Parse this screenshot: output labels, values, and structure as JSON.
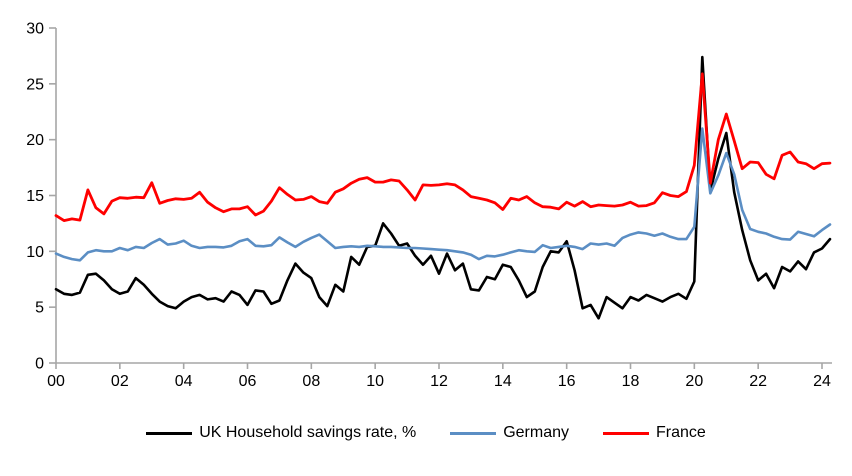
{
  "chart_data": {
    "type": "line",
    "title": "",
    "xlabel": "",
    "ylabel": "",
    "x_start_year": 2000,
    "x_step_years": 0.25,
    "x_axis": {
      "tick_interval_years": 2,
      "tick_labels": [
        "00",
        "02",
        "04",
        "06",
        "08",
        "10",
        "12",
        "14",
        "16",
        "18",
        "20",
        "22",
        "24"
      ]
    },
    "y_axis": {
      "min": 0,
      "max": 30,
      "tick_step": 5,
      "tick_labels": [
        "0",
        "5",
        "10",
        "15",
        "20",
        "25",
        "30"
      ]
    },
    "grid": false,
    "legend_position": "bottom-center",
    "axis_color": "#A6A6A6",
    "label_color": "#000000",
    "series": [
      {
        "name": "UK Household savings rate, %",
        "color": "#000000",
        "line_width": 2.6,
        "values": [
          6.6,
          6.2,
          6.1,
          6.3,
          7.9,
          8.0,
          7.4,
          6.6,
          6.2,
          6.4,
          7.6,
          7.0,
          6.2,
          5.5,
          5.1,
          4.9,
          5.5,
          5.9,
          6.1,
          5.7,
          5.8,
          5.5,
          6.4,
          6.1,
          5.2,
          6.5,
          6.4,
          5.3,
          5.6,
          7.4,
          8.9,
          8.1,
          7.6,
          5.9,
          5.1,
          7.0,
          6.4,
          9.5,
          8.8,
          10.4,
          10.5,
          12.5,
          11.6,
          10.5,
          10.7,
          9.6,
          8.8,
          9.6,
          8.0,
          9.8,
          8.3,
          8.9,
          6.6,
          6.5,
          7.7,
          7.5,
          8.8,
          8.6,
          7.4,
          5.9,
          6.4,
          8.6,
          10.0,
          9.9,
          10.9,
          8.3,
          4.9,
          5.2,
          4.0,
          5.9,
          5.4,
          4.9,
          5.9,
          5.6,
          6.1,
          5.8,
          5.5,
          5.9,
          6.2,
          5.75,
          7.3,
          27.4,
          15.4,
          18.3,
          20.6,
          15.3,
          11.9,
          9.2,
          7.4,
          8.0,
          6.7,
          8.6,
          8.2,
          9.1,
          8.4,
          9.9,
          10.25,
          11.1
        ]
      },
      {
        "name": "Germany",
        "color": "#5B8EC4",
        "line_width": 2.6,
        "values": [
          9.8,
          9.5,
          9.3,
          9.2,
          9.9,
          10.1,
          10.0,
          10.0,
          10.3,
          10.1,
          10.4,
          10.3,
          10.75,
          11.1,
          10.6,
          10.7,
          10.95,
          10.5,
          10.3,
          10.4,
          10.4,
          10.35,
          10.5,
          10.9,
          11.1,
          10.5,
          10.45,
          10.55,
          11.25,
          10.8,
          10.4,
          10.85,
          11.2,
          11.5,
          10.9,
          10.3,
          10.4,
          10.45,
          10.4,
          10.5,
          10.45,
          10.4,
          10.4,
          10.35,
          10.3,
          10.3,
          10.25,
          10.2,
          10.15,
          10.1,
          10.0,
          9.9,
          9.7,
          9.3,
          9.6,
          9.55,
          9.7,
          9.9,
          10.1,
          10.0,
          9.95,
          10.55,
          10.3,
          10.4,
          10.5,
          10.4,
          10.2,
          10.7,
          10.6,
          10.7,
          10.5,
          11.2,
          11.5,
          11.7,
          11.6,
          11.4,
          11.6,
          11.3,
          11.1,
          11.1,
          12.2,
          21.0,
          15.2,
          16.8,
          18.8,
          16.9,
          13.7,
          12.0,
          11.75,
          11.6,
          11.3,
          11.1,
          11.05,
          11.75,
          11.55,
          11.35,
          11.9,
          12.4
        ]
      },
      {
        "name": "France",
        "color": "#FF0000",
        "line_width": 2.8,
        "values": [
          13.2,
          12.75,
          12.9,
          12.8,
          15.5,
          13.9,
          13.35,
          14.5,
          14.8,
          14.75,
          14.85,
          14.8,
          16.15,
          14.3,
          14.55,
          14.7,
          14.65,
          14.75,
          15.3,
          14.4,
          13.9,
          13.55,
          13.8,
          13.8,
          14.0,
          13.25,
          13.6,
          14.5,
          15.7,
          15.1,
          14.6,
          14.65,
          14.9,
          14.45,
          14.3,
          15.3,
          15.6,
          16.1,
          16.45,
          16.6,
          16.2,
          16.2,
          16.4,
          16.3,
          15.5,
          14.6,
          15.95,
          15.9,
          15.95,
          16.05,
          15.95,
          15.5,
          14.9,
          14.75,
          14.6,
          14.35,
          13.75,
          14.75,
          14.6,
          14.9,
          14.35,
          14.0,
          13.95,
          13.8,
          14.4,
          14.05,
          14.45,
          14.0,
          14.15,
          14.1,
          14.05,
          14.15,
          14.4,
          14.05,
          14.1,
          14.35,
          15.25,
          15.0,
          14.9,
          15.35,
          17.7,
          25.9,
          16.1,
          20.0,
          22.3,
          19.9,
          17.4,
          18.0,
          17.95,
          16.9,
          16.5,
          18.6,
          18.9,
          18.0,
          17.85,
          17.4,
          17.85,
          17.9
        ]
      }
    ]
  }
}
